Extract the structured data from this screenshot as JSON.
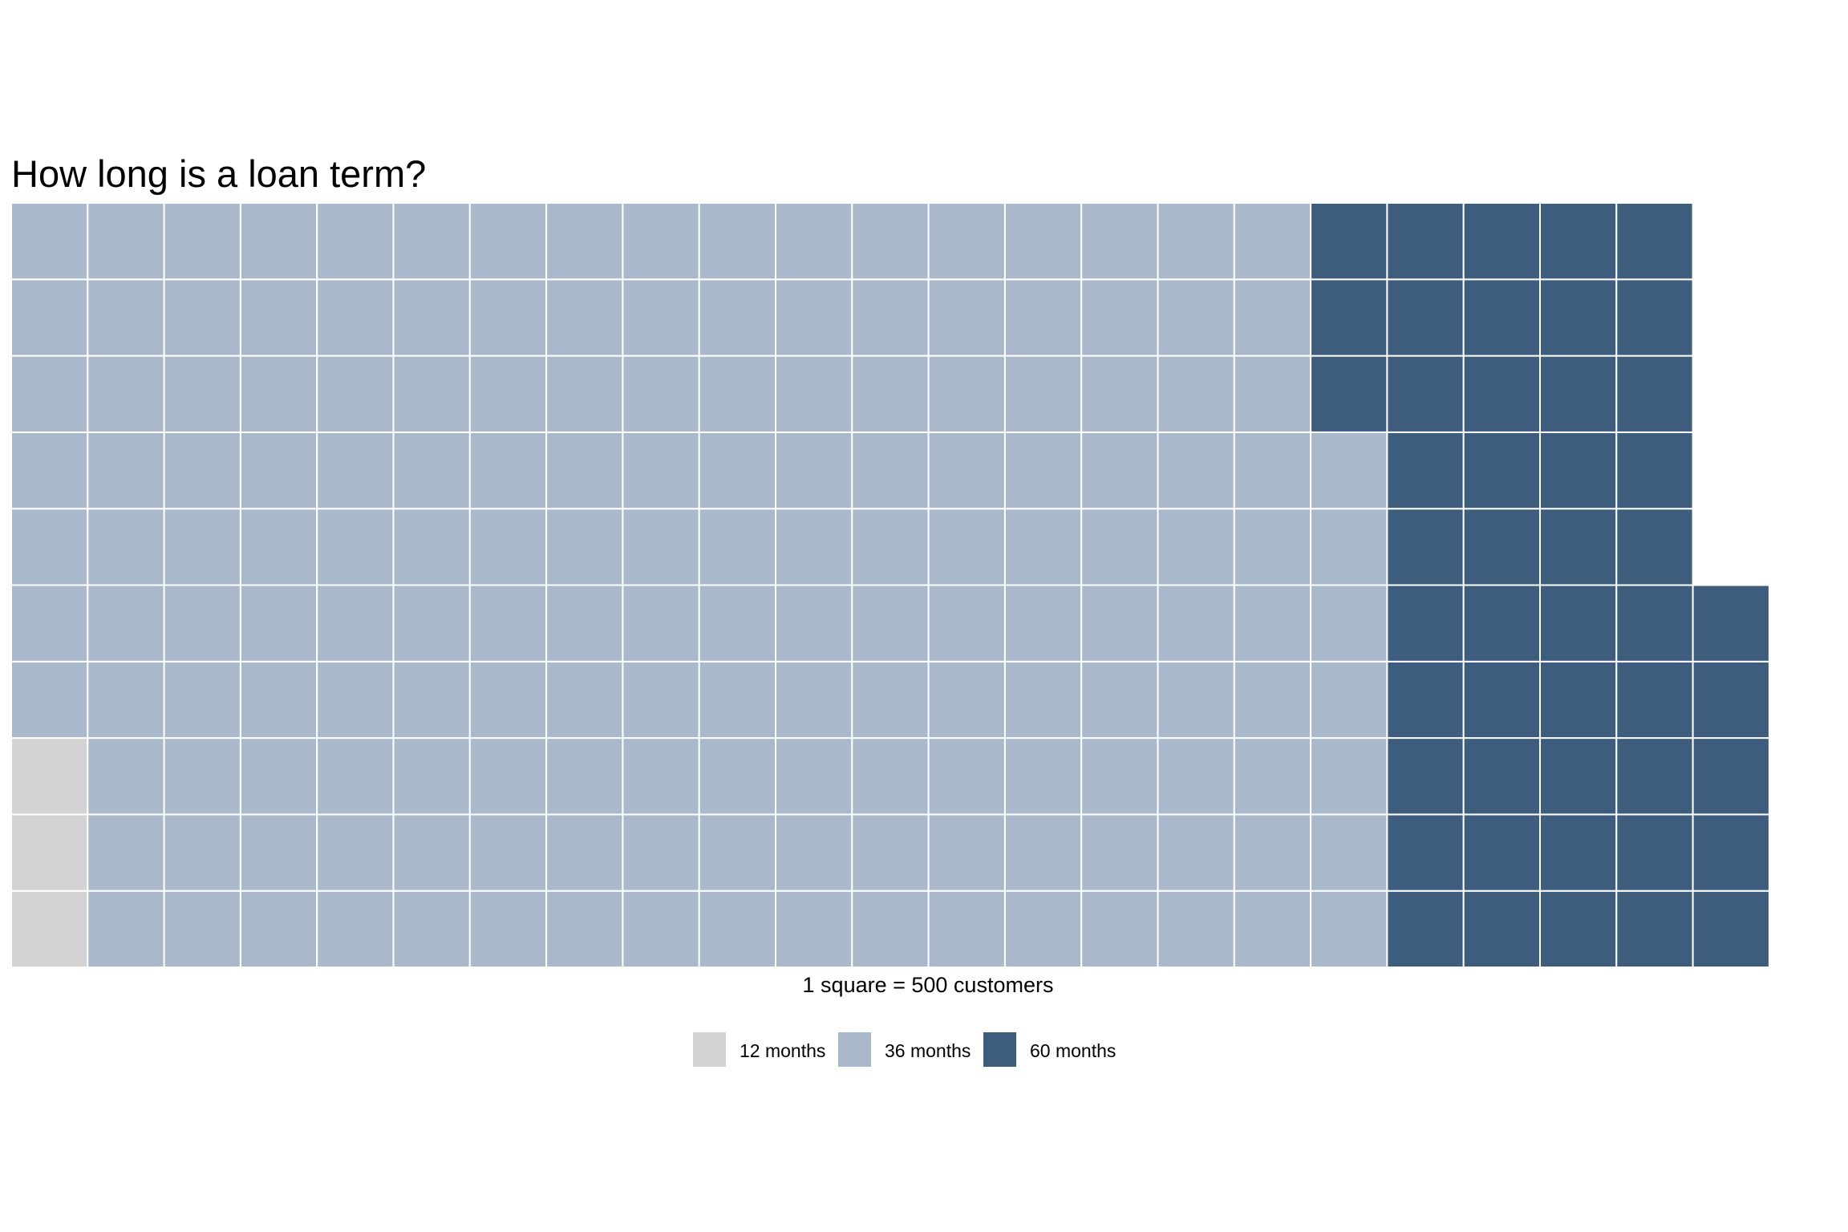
{
  "chart_data": {
    "type": "waffle",
    "title": "How long is a loan term?",
    "caption": "1 square = 500 customers",
    "rows": 10,
    "fill_order": "column-wise, bottom to top, left to right",
    "categories": [
      "12 months",
      "36 months",
      "60 months"
    ],
    "values": [
      3,
      174,
      48
    ],
    "colors": {
      "12 months": "#d3d3d3",
      "36 months": "#a9b9cb",
      "60 months": "#3e5c7b"
    },
    "legend_position": "bottom"
  }
}
